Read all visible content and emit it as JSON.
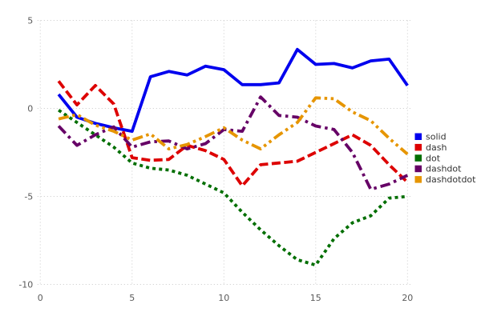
{
  "chart_data": {
    "type": "line",
    "title": "",
    "xlabel": "",
    "ylabel": "",
    "x": [
      1,
      2,
      3,
      4,
      5,
      6,
      7,
      8,
      9,
      10,
      11,
      12,
      13,
      14,
      15,
      16,
      17,
      18,
      19,
      20
    ],
    "series": [
      {
        "name": "solid",
        "color": "#0000ee",
        "linestyle": "solid",
        "values": [
          0.8,
          -0.5,
          -0.85,
          -1.1,
          -1.3,
          1.8,
          2.1,
          1.9,
          2.4,
          2.2,
          1.35,
          1.35,
          1.45,
          3.35,
          2.5,
          2.55,
          2.3,
          2.7,
          2.8,
          1.3
        ]
      },
      {
        "name": "dash",
        "color": "#dd0000",
        "linestyle": "dash",
        "values": [
          1.55,
          0.2,
          1.3,
          0.25,
          -2.8,
          -2.95,
          -2.9,
          -2.1,
          -2.4,
          -2.9,
          -4.4,
          -3.2,
          -3.1,
          -3.0,
          -2.5,
          -2.0,
          -1.5,
          -2.1,
          -3.2,
          -4.2
        ]
      },
      {
        "name": "dot",
        "color": "#006e00",
        "linestyle": "dot",
        "values": [
          -0.1,
          -0.8,
          -1.5,
          -2.2,
          -3.1,
          -3.4,
          -3.5,
          -3.8,
          -4.3,
          -4.8,
          -5.9,
          -6.9,
          -7.8,
          -8.6,
          -8.9,
          -7.4,
          -6.5,
          -6.1,
          -5.1,
          -5.0
        ]
      },
      {
        "name": "dashdot",
        "color": "#660066",
        "linestyle": "dashdot",
        "values": [
          -1.0,
          -2.1,
          -1.5,
          -1.05,
          -2.2,
          -1.9,
          -1.85,
          -2.3,
          -2.0,
          -1.2,
          -1.3,
          0.65,
          -0.4,
          -0.5,
          -1.0,
          -1.2,
          -2.5,
          -4.6,
          -4.3,
          -3.8
        ]
      },
      {
        "name": "dashdotdot",
        "color": "#e69500",
        "linestyle": "dashdotdot",
        "values": [
          -0.6,
          -0.35,
          -0.95,
          -1.3,
          -1.8,
          -1.45,
          -2.3,
          -2.05,
          -1.6,
          -1.1,
          -1.8,
          -2.3,
          -1.5,
          -0.8,
          0.6,
          0.55,
          -0.2,
          -0.7,
          -1.7,
          -2.6
        ]
      }
    ],
    "xlim": [
      -0.15,
      20.2
    ],
    "ylim": [
      -10.045,
      5.045
    ],
    "xticks": {
      "values": [
        0,
        5,
        10,
        15,
        20
      ],
      "labels": [
        "0",
        "5",
        "10",
        "15",
        "20"
      ]
    },
    "yticks": {
      "values": [
        5,
        0,
        -5,
        -10
      ],
      "labels": [
        "5",
        "0",
        "-5",
        "-10"
      ]
    },
    "grid": true,
    "legend_position": "center right",
    "legend": [
      "solid",
      "dash",
      "dot",
      "dashdot",
      "dashdotdot"
    ]
  },
  "styles": {
    "background": "#ffffff",
    "grid_color": "#c9c9c9",
    "tick_label_color": "#5a5a5a",
    "legend_text_color": "#333333"
  }
}
